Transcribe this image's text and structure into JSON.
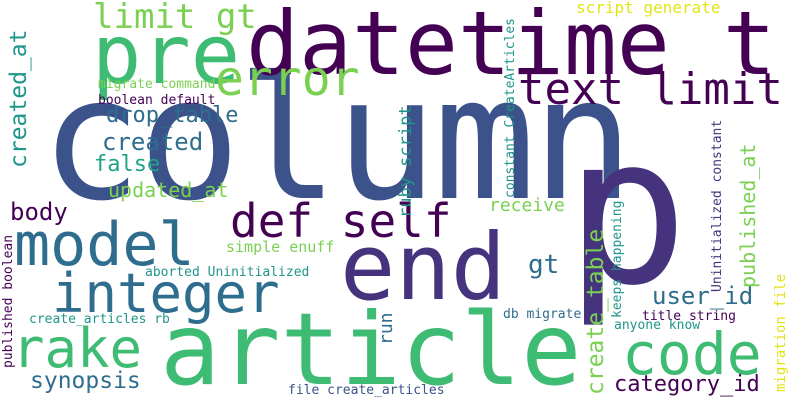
{
  "palette": {
    "yellow": "#e3e418",
    "lime": "#7ad151",
    "green": "#3fbc73",
    "teal": "#20a386",
    "cyan": "#1f968b",
    "blue": "#2e6d8e",
    "steel": "#3b528b",
    "indigo": "#46337e",
    "violet": "#440154"
  },
  "words": [
    "column",
    "p",
    "datetime t",
    "article",
    "end",
    "pre",
    "model",
    "integer",
    "def self",
    "code",
    "rake",
    "error",
    "text limit",
    "limit gt",
    "created_at",
    "create_table",
    "published_at",
    "created",
    "drop_table",
    "synopsis",
    "category_id",
    "user_id",
    "updated_at",
    "false",
    "body",
    "gt",
    "ruby script",
    "receive",
    "run",
    "simple enuff",
    "aborted Uninitialized",
    "create_articles rb",
    "db migrate",
    "published boolean",
    "constant CreateArticles",
    "script generate",
    "migrate command",
    "boolean default",
    "keeps happening",
    "Uninitialized constant",
    "migration file",
    "title string",
    "anyone know",
    "file create_articles"
  ]
}
